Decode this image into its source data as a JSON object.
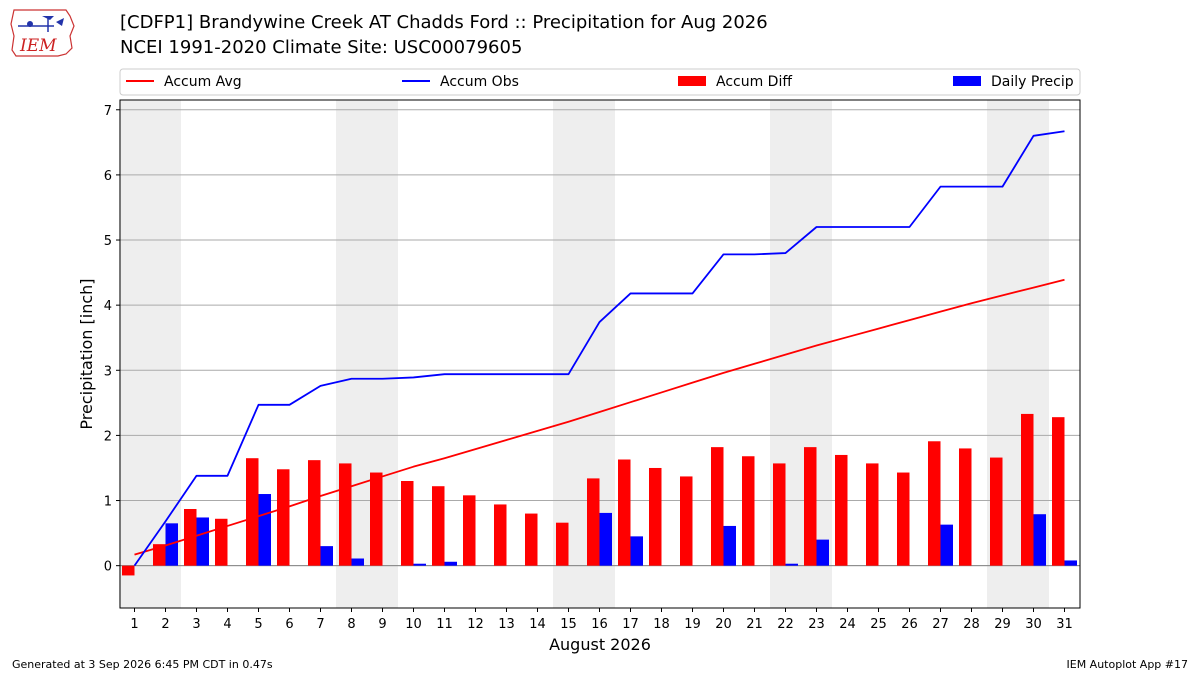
{
  "header": {
    "title_line1": "[CDFP1] Brandywine Creek  AT Chadds Ford :: Precipitation for Aug 2026",
    "title_line2": "NCEI 1991-2020 Climate Site: USC00079605",
    "logo_text": "IEM"
  },
  "footer": {
    "generated": "Generated at 3 Sep 2026 6:45 PM CDT in 0.47s",
    "app": "IEM Autoplot App #17"
  },
  "colors": {
    "accum_avg": "#ff0000",
    "accum_obs": "#0000ff",
    "accum_diff": "#ff0000",
    "daily_precip": "#0000ff",
    "weekend_shade": "#eeeeee",
    "grid": "#aaaaaa"
  },
  "chart_data": {
    "type": "bar",
    "xlabel": "August 2026",
    "ylabel": "Precipitation [inch]",
    "ylim": [
      -0.65,
      7.15
    ],
    "yticks": [
      0,
      1,
      2,
      3,
      4,
      5,
      6,
      7
    ],
    "grid": true,
    "legend_position": "top",
    "x": [
      1,
      2,
      3,
      4,
      5,
      6,
      7,
      8,
      9,
      10,
      11,
      12,
      13,
      14,
      15,
      16,
      17,
      18,
      19,
      20,
      21,
      22,
      23,
      24,
      25,
      26,
      27,
      28,
      29,
      30,
      31
    ],
    "shaded_days": [
      [
        1,
        2
      ],
      [
        8,
        9
      ],
      [
        15,
        16
      ],
      [
        22,
        23
      ],
      [
        29,
        30
      ]
    ],
    "series": [
      {
        "name": "Accum Avg",
        "kind": "line",
        "values": [
          0.17,
          0.31,
          0.46,
          0.61,
          0.76,
          0.91,
          1.07,
          1.22,
          1.37,
          1.52,
          1.65,
          1.79,
          1.93,
          2.07,
          2.21,
          2.36,
          2.51,
          2.66,
          2.81,
          2.96,
          3.1,
          3.24,
          3.38,
          3.51,
          3.64,
          3.77,
          3.9,
          4.03,
          4.15,
          4.27,
          4.39
        ]
      },
      {
        "name": "Accum Obs",
        "kind": "line",
        "values": [
          0.0,
          0.68,
          1.38,
          1.38,
          2.47,
          2.47,
          2.76,
          2.87,
          2.87,
          2.89,
          2.94,
          2.94,
          2.94,
          2.94,
          2.94,
          3.74,
          4.18,
          4.18,
          4.18,
          4.78,
          4.78,
          4.8,
          5.2,
          5.2,
          5.2,
          5.2,
          5.82,
          5.82,
          5.82,
          6.6,
          6.67
        ]
      },
      {
        "name": "Accum Diff",
        "kind": "bar",
        "values": [
          -0.15,
          0.33,
          0.87,
          0.72,
          1.65,
          1.48,
          1.62,
          1.57,
          1.43,
          1.3,
          1.22,
          1.08,
          0.94,
          0.8,
          0.66,
          1.34,
          1.63,
          1.5,
          1.37,
          1.82,
          1.68,
          1.57,
          1.82,
          1.7,
          1.57,
          1.43,
          1.91,
          1.8,
          1.66,
          2.33,
          2.28
        ]
      },
      {
        "name": "Daily Precip",
        "kind": "bar",
        "values": [
          0.0,
          0.65,
          0.74,
          0.0,
          1.1,
          0.0,
          0.3,
          0.11,
          0.0,
          0.03,
          0.06,
          0.0,
          0.0,
          0.0,
          0.0,
          0.81,
          0.45,
          0.0,
          0.0,
          0.61,
          0.0,
          0.03,
          0.4,
          0.0,
          0.0,
          0.0,
          0.63,
          0.0,
          0.0,
          0.79,
          0.08
        ]
      }
    ]
  }
}
